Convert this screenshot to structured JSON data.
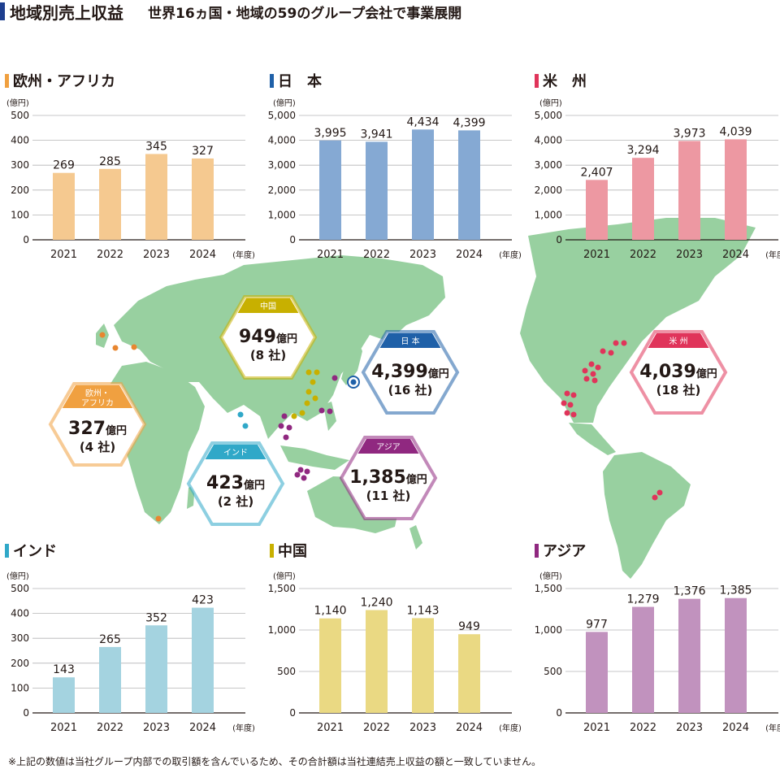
{
  "header": {
    "title": "地域別売上収益",
    "subtitle": "世界16ヵ国・地域の59のグループ会社で事業展開"
  },
  "unit_label": "(億円)",
  "year_unit": "(年度)",
  "colors": {
    "europe_africa": "#f0a040",
    "japan": "#1f60a8",
    "americas": "#e0345a",
    "india": "#30a8c8",
    "china": "#c8b000",
    "asia": "#902880",
    "map_land": "#98d0a0"
  },
  "badges": [
    {
      "id": "china",
      "label": "中国",
      "amount": "949",
      "unit": "億円",
      "count": "(8 社)"
    },
    {
      "id": "japan",
      "label": "日 本",
      "amount": "4,399",
      "unit": "億円",
      "count": "(16 社)"
    },
    {
      "id": "americas",
      "label": "米 州",
      "amount": "4,039",
      "unit": "億円",
      "count": "(18 社)"
    },
    {
      "id": "europe_africa",
      "label": "欧州・\nアフリカ",
      "amount": "327",
      "unit": "億円",
      "count": "(4 社)"
    },
    {
      "id": "india",
      "label": "インド",
      "amount": "423",
      "unit": "億円",
      "count": "(2 社)"
    },
    {
      "id": "asia",
      "label": "アジア",
      "amount": "1,385",
      "unit": "億円",
      "count": "(11 社)"
    }
  ],
  "chart_data": [
    {
      "id": "europe_africa",
      "type": "bar",
      "title": "欧州・アフリカ",
      "categories": [
        "2021",
        "2022",
        "2023",
        "2024"
      ],
      "values": [
        269,
        285,
        345,
        327
      ],
      "value_labels": [
        "269",
        "285",
        "345",
        "327"
      ],
      "ylim": [
        0,
        500
      ],
      "yticks": [
        0,
        100,
        200,
        300,
        400,
        500
      ],
      "ytick_labels": [
        "0",
        "100",
        "200",
        "300",
        "400",
        "500"
      ],
      "bar_color": "#f5c990"
    },
    {
      "id": "japan",
      "type": "bar",
      "title": "日　本",
      "categories": [
        "2021",
        "2022",
        "2023",
        "2024"
      ],
      "values": [
        3995,
        3941,
        4434,
        4399
      ],
      "value_labels": [
        "3,995",
        "3,941",
        "4,434",
        "4,399"
      ],
      "ylim": [
        0,
        5000
      ],
      "yticks": [
        0,
        1000,
        2000,
        3000,
        4000,
        5000
      ],
      "ytick_labels": [
        "0",
        "1,000",
        "2,000",
        "3,000",
        "4,000",
        "5,000"
      ],
      "bar_color": "#85a9d3"
    },
    {
      "id": "americas",
      "type": "bar",
      "title": "米　州",
      "categories": [
        "2021",
        "2022",
        "2023",
        "2024"
      ],
      "values": [
        2407,
        3294,
        3973,
        4039
      ],
      "value_labels": [
        "2,407",
        "3,294",
        "3,973",
        "4,039"
      ],
      "ylim": [
        0,
        5000
      ],
      "yticks": [
        0,
        1000,
        2000,
        3000,
        4000,
        5000
      ],
      "ytick_labels": [
        "0",
        "1,000",
        "2,000",
        "3,000",
        "4,000",
        "5,000"
      ],
      "bar_color": "#ed98a2"
    },
    {
      "id": "india",
      "type": "bar",
      "title": "インド",
      "categories": [
        "2021",
        "2022",
        "2023",
        "2024"
      ],
      "values": [
        143,
        265,
        352,
        423
      ],
      "value_labels": [
        "143",
        "265",
        "352",
        "423"
      ],
      "ylim": [
        0,
        500
      ],
      "yticks": [
        0,
        100,
        200,
        300,
        400,
        500
      ],
      "ytick_labels": [
        "0",
        "100",
        "200",
        "300",
        "400",
        "500"
      ],
      "bar_color": "#a4d3e0"
    },
    {
      "id": "china",
      "type": "bar",
      "title": "中国",
      "categories": [
        "2021",
        "2022",
        "2023",
        "2024"
      ],
      "values": [
        1140,
        1240,
        1143,
        949
      ],
      "value_labels": [
        "1,140",
        "1,240",
        "1,143",
        "949"
      ],
      "ylim": [
        0,
        1500
      ],
      "yticks": [
        0,
        500,
        1000,
        1500
      ],
      "ytick_labels": [
        "0",
        "500",
        "1,000",
        "1,500"
      ],
      "bar_color": "#ead983"
    },
    {
      "id": "asia",
      "type": "bar",
      "title": "アジア",
      "categories": [
        "2021",
        "2022",
        "2023",
        "2024"
      ],
      "values": [
        977,
        1279,
        1376,
        1385
      ],
      "value_labels": [
        "977",
        "1,279",
        "1,376",
        "1,385"
      ],
      "ylim": [
        0,
        1500
      ],
      "yticks": [
        0,
        500,
        1000,
        1500
      ],
      "ytick_labels": [
        "0",
        "500",
        "1,000",
        "1,500"
      ],
      "bar_color": "#c192be"
    }
  ],
  "footnote": "※上記の数値は当社グループ内部での取引額を含んでいるため、その合計額は当社連結売上収益の額と一致していません。"
}
